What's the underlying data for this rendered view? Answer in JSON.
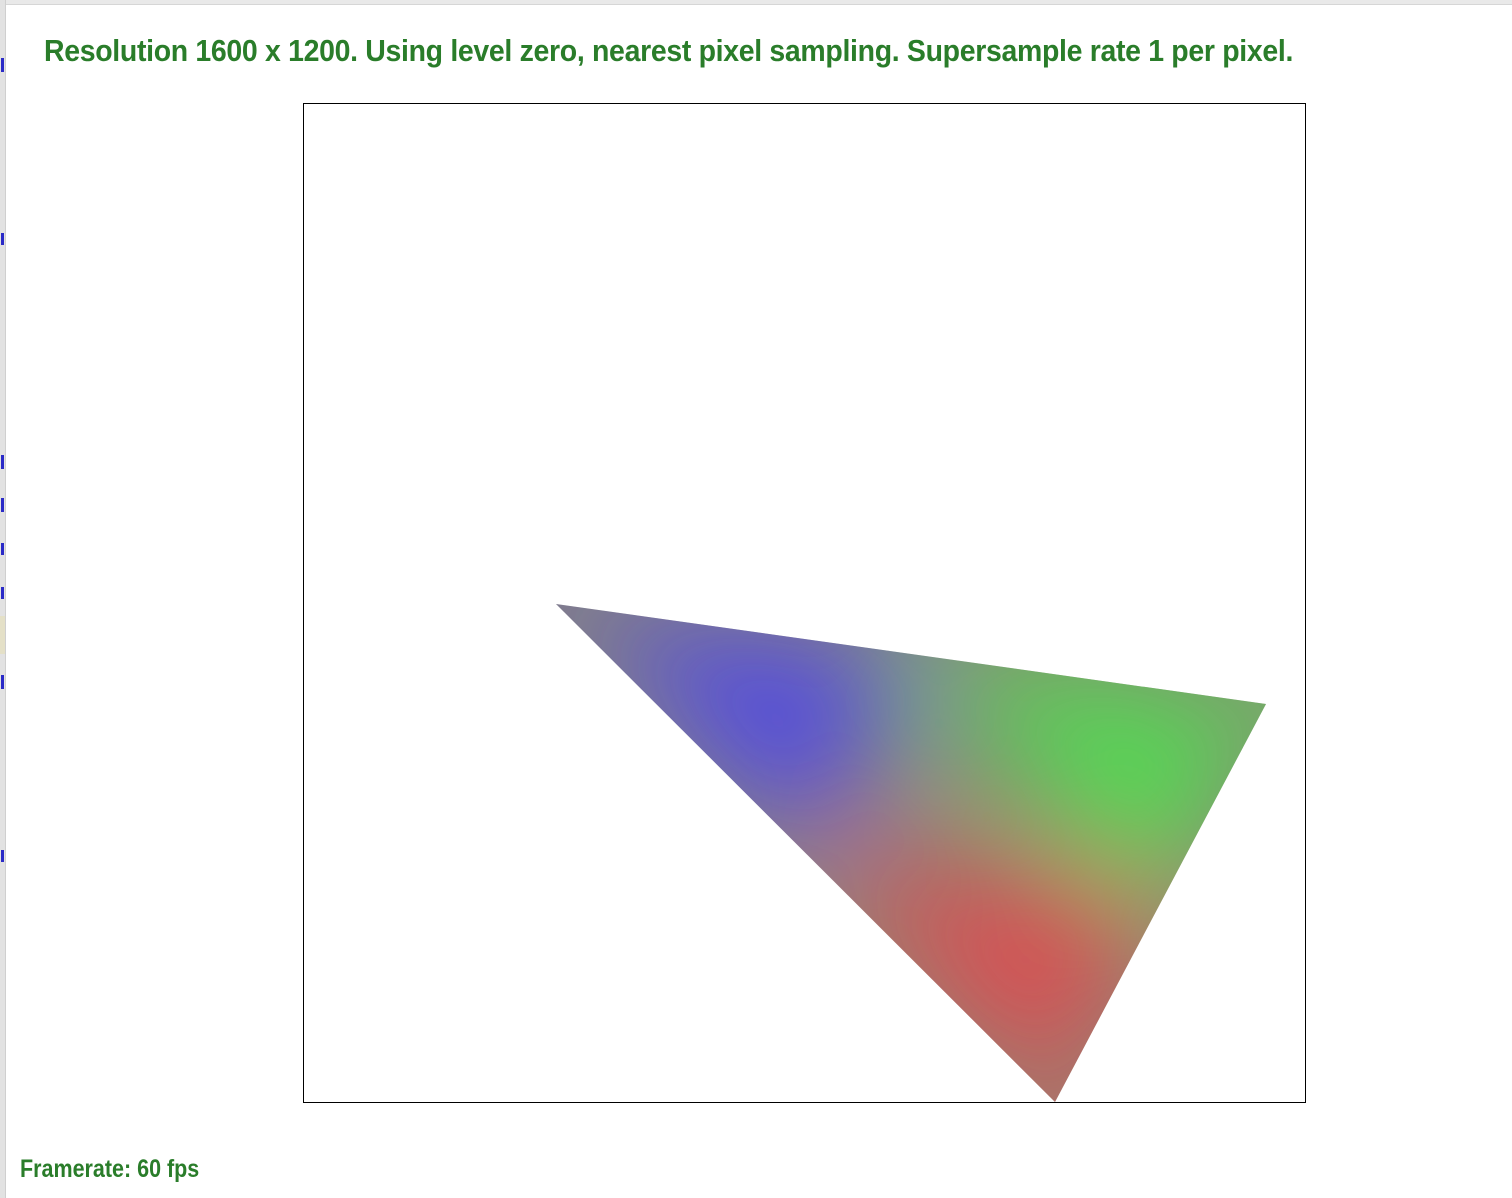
{
  "header": {
    "title": "Resolution 1600 x 1200. Using level zero, nearest pixel sampling. Supersample rate 1 per pixel."
  },
  "status": {
    "framerate_label": "Framerate: 60 fps"
  },
  "colors": {
    "title_text": "#2a7d2a",
    "status_text": "#2a7d2a",
    "frame_border": "#000000",
    "vertex_blue": "#5046e8",
    "vertex_green": "#50e050",
    "vertex_red": "#e04a50"
  }
}
